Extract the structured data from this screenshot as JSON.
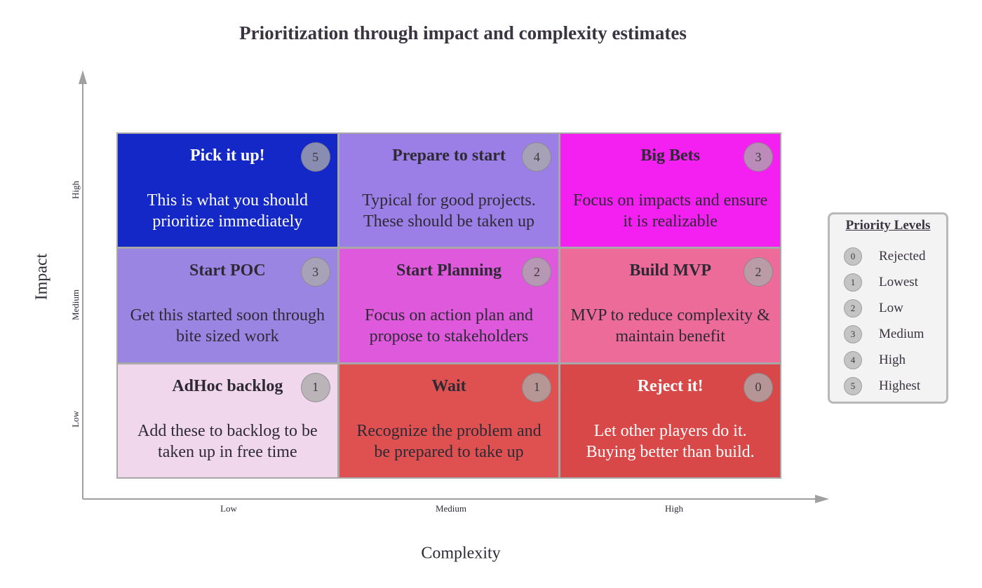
{
  "title": "Prioritization through impact and complexity estimates",
  "axes": {
    "y_label": "Impact",
    "x_label": "Complexity",
    "y_ticks": [
      "High",
      "Medium",
      "Low"
    ],
    "x_ticks": [
      "Low",
      "Medium",
      "High"
    ]
  },
  "cells": [
    {
      "title": "Pick it up!",
      "desc_lines": [
        "This is what you should",
        "prioritize immediately"
      ],
      "priority": "5",
      "color": "#1428c8"
    },
    {
      "title": "Prepare to start",
      "desc_lines": [
        "Typical for good projects.",
        "These should be taken up"
      ],
      "priority": "4",
      "color": "#9b7ee6"
    },
    {
      "title": "Big Bets",
      "desc_lines": [
        "Focus on impacts and ensure",
        "it is realizable"
      ],
      "priority": "3",
      "color": "#f41ff1"
    },
    {
      "title": "Start POC",
      "desc_lines": [
        "Get this started soon through",
        "bite sized work"
      ],
      "priority": "3",
      "color": "#9b85e3"
    },
    {
      "title": "Start Planning",
      "desc_lines": [
        "Focus on action plan and",
        "propose to stakeholders"
      ],
      "priority": "2",
      "color": "#de59dc"
    },
    {
      "title": "Build MVP",
      "desc_lines": [
        "MVP to reduce complexity &",
        "maintain benefit"
      ],
      "priority": "2",
      "color": "#ec6b98"
    },
    {
      "title": "AdHoc backlog",
      "desc_lines": [
        "Add these to backlog to be",
        "taken up in free time"
      ],
      "priority": "1",
      "color": "#f1d7ec"
    },
    {
      "title": "Wait",
      "desc_lines": [
        "Recognize the problem and",
        "be prepared to take up"
      ],
      "priority": "1",
      "color": "#df5150"
    },
    {
      "title": "Reject it!",
      "desc_lines": [
        "Let other players do it.",
        "Buying better than build."
      ],
      "priority": "0",
      "color": "#d94848"
    }
  ],
  "legend": {
    "title": "Priority Levels",
    "items": [
      {
        "level": "0",
        "label": "Rejected"
      },
      {
        "level": "1",
        "label": "Lowest"
      },
      {
        "level": "2",
        "label": "Low"
      },
      {
        "level": "3",
        "label": "Medium"
      },
      {
        "level": "4",
        "label": "High"
      },
      {
        "level": "5",
        "label": "Highest"
      }
    ]
  }
}
